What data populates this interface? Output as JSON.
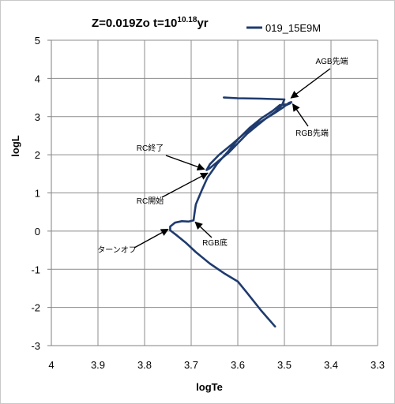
{
  "chart_data": {
    "type": "line",
    "title_main": "Z=0.019Zo t=10",
    "title_exponent": "10.18",
    "title_suffix": "yr",
    "xlabel": "logTe",
    "ylabel": "logL",
    "xlim": [
      4,
      3.3
    ],
    "ylim": [
      -3,
      5
    ],
    "x_ticks": [
      "4",
      "3.9",
      "3.8",
      "3.7",
      "3.6",
      "3.5",
      "3.4",
      "3.3"
    ],
    "y_ticks": [
      "5",
      "4",
      "3",
      "2",
      "1",
      "0",
      "-1",
      "-2",
      "-3"
    ],
    "x_reversed": true,
    "grid": true,
    "legend_position": "top-right",
    "series": [
      {
        "name": "019_15E9M",
        "color": "#1f3b6e",
        "x": [
          3.52,
          3.55,
          3.58,
          3.6,
          3.63,
          3.66,
          3.69,
          3.71,
          3.73,
          3.745,
          3.745,
          3.735,
          3.72,
          3.705,
          3.695,
          3.693,
          3.69,
          3.678,
          3.665,
          3.645,
          3.62,
          3.6,
          3.575,
          3.55,
          3.525,
          3.51,
          3.495,
          3.487,
          3.5,
          3.485,
          3.49,
          3.505,
          3.52,
          3.55,
          3.58,
          3.61,
          3.64,
          3.66,
          3.667,
          3.66,
          3.64,
          3.62,
          3.6,
          3.58,
          3.56,
          3.54,
          3.52,
          3.505,
          3.5,
          3.55,
          3.6,
          3.63
        ],
        "y": [
          -2.5,
          -2.08,
          -1.62,
          -1.32,
          -1.1,
          -0.85,
          -0.55,
          -0.32,
          -0.12,
          0.02,
          0.12,
          0.22,
          0.26,
          0.25,
          0.28,
          0.45,
          0.7,
          1.05,
          1.4,
          1.75,
          2.1,
          2.4,
          2.7,
          2.95,
          3.15,
          3.3,
          3.32,
          3.35,
          3.28,
          3.38,
          3.36,
          3.22,
          3.1,
          2.87,
          2.62,
          2.3,
          2.0,
          1.75,
          1.6,
          1.65,
          1.85,
          2.05,
          2.3,
          2.55,
          2.75,
          2.95,
          3.12,
          3.3,
          3.45,
          3.47,
          3.48,
          3.5
        ]
      }
    ],
    "annotations": [
      {
        "label": "AGB先端",
        "x": 3.49,
        "y": 3.45
      },
      {
        "label": "RGB先端",
        "x": 3.485,
        "y": 3.38
      },
      {
        "label": "RC終了",
        "x": 3.667,
        "y": 1.6
      },
      {
        "label": "RC開始",
        "x": 3.66,
        "y": 1.55
      },
      {
        "label": "RGB底",
        "x": 3.695,
        "y": 0.28
      },
      {
        "label": "ターンオフ",
        "x": 3.745,
        "y": 0.08
      }
    ]
  }
}
